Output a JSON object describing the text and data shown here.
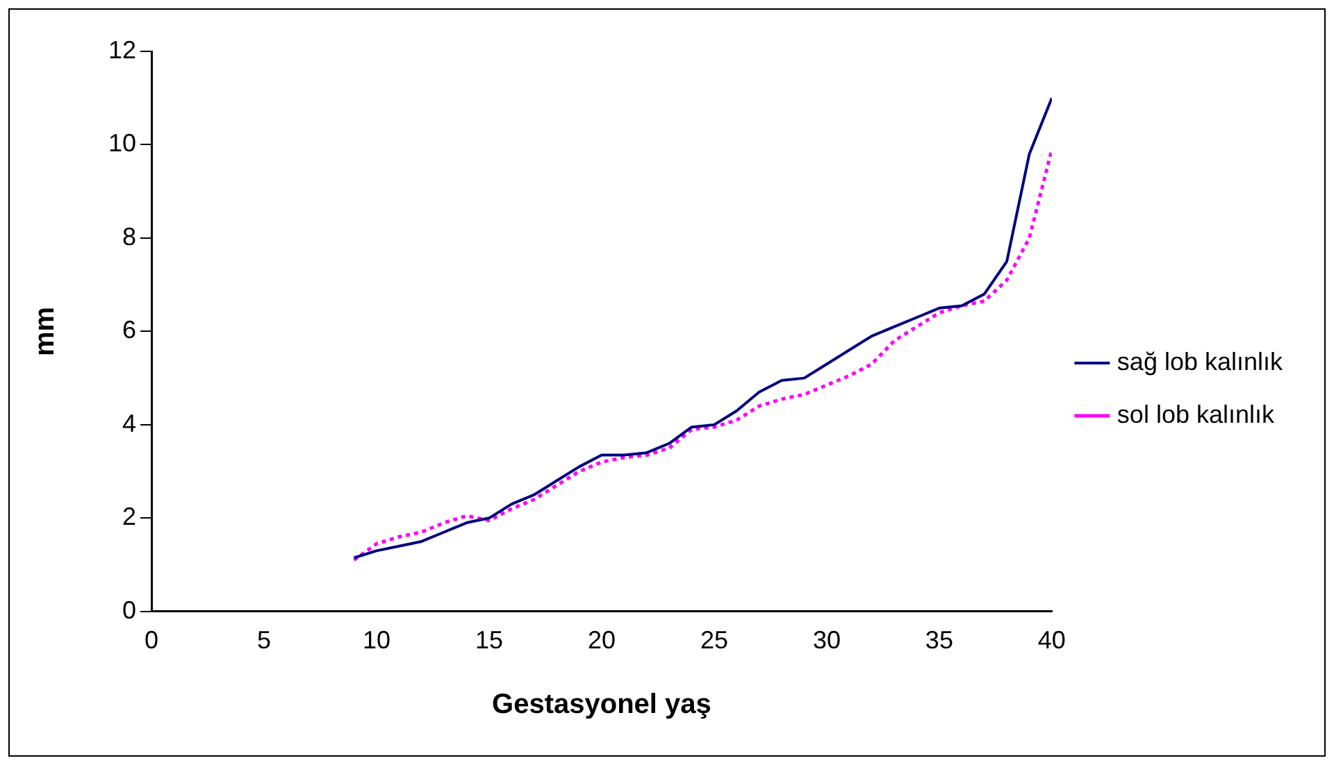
{
  "chart_data": {
    "type": "line",
    "xlabel": "Gestasyonel yaş",
    "ylabel": "mm",
    "x": [
      9,
      10,
      11,
      12,
      13,
      14,
      15,
      16,
      17,
      18,
      19,
      20,
      21,
      22,
      23,
      24,
      25,
      26,
      27,
      28,
      29,
      30,
      31,
      32,
      33,
      34,
      35,
      36,
      37,
      38,
      39,
      40
    ],
    "series": [
      {
        "name": "sağ lob kalınlık",
        "color": "#000080",
        "line_style": "solid",
        "values": [
          1.15,
          1.3,
          1.4,
          1.5,
          1.7,
          1.9,
          2.0,
          2.3,
          2.5,
          2.8,
          3.1,
          3.35,
          3.35,
          3.4,
          3.6,
          3.95,
          4.0,
          4.3,
          4.7,
          4.95,
          5.0,
          5.3,
          5.6,
          5.9,
          6.1,
          6.3,
          6.5,
          6.55,
          6.8,
          7.5,
          9.8,
          11.0
        ]
      },
      {
        "name": "sol lob kalınlık",
        "color": "#ff00ff",
        "line_style": "dotted",
        "values": [
          1.1,
          1.45,
          1.6,
          1.7,
          1.9,
          2.05,
          1.95,
          2.2,
          2.4,
          2.7,
          3.0,
          3.2,
          3.3,
          3.35,
          3.5,
          3.9,
          3.95,
          4.1,
          4.4,
          4.55,
          4.65,
          4.85,
          5.05,
          5.3,
          5.8,
          6.1,
          6.4,
          6.55,
          6.65,
          7.1,
          8.0,
          9.9
        ]
      }
    ],
    "xlim": [
      0,
      40
    ],
    "xticks": [
      0,
      5,
      10,
      15,
      20,
      25,
      30,
      35,
      40
    ],
    "ylim": [
      0,
      12
    ],
    "yticks": [
      0,
      2,
      4,
      6,
      8,
      10,
      12
    ],
    "grid": false,
    "legend": "right",
    "marker": "none"
  }
}
